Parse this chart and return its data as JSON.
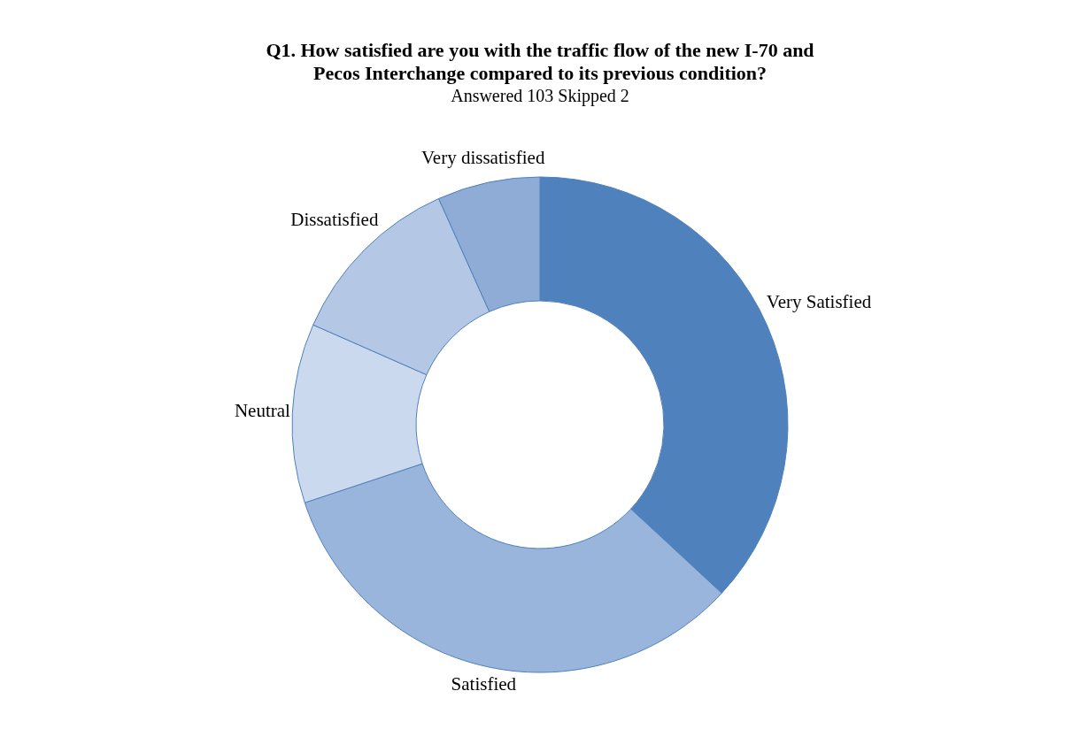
{
  "chart_data": {
    "type": "donut",
    "title": "Q1. How satisfied are you with the traffic flow of the new I-70 and Pecos Interchange compared to its previous condition?",
    "subtitle": "Answered 103 Skipped 2",
    "categories": [
      "Very Satisfied",
      "Satisfied",
      "Neutral",
      "Dissatisfied",
      "Very dissatisfied"
    ],
    "values": [
      36.9,
      33.0,
      11.7,
      11.7,
      6.7
    ],
    "colors": [
      "#4f81bd",
      "#9ab5db",
      "#cbd9ee",
      "#b4c7e4",
      "#8eacd6"
    ],
    "legend": false
  }
}
